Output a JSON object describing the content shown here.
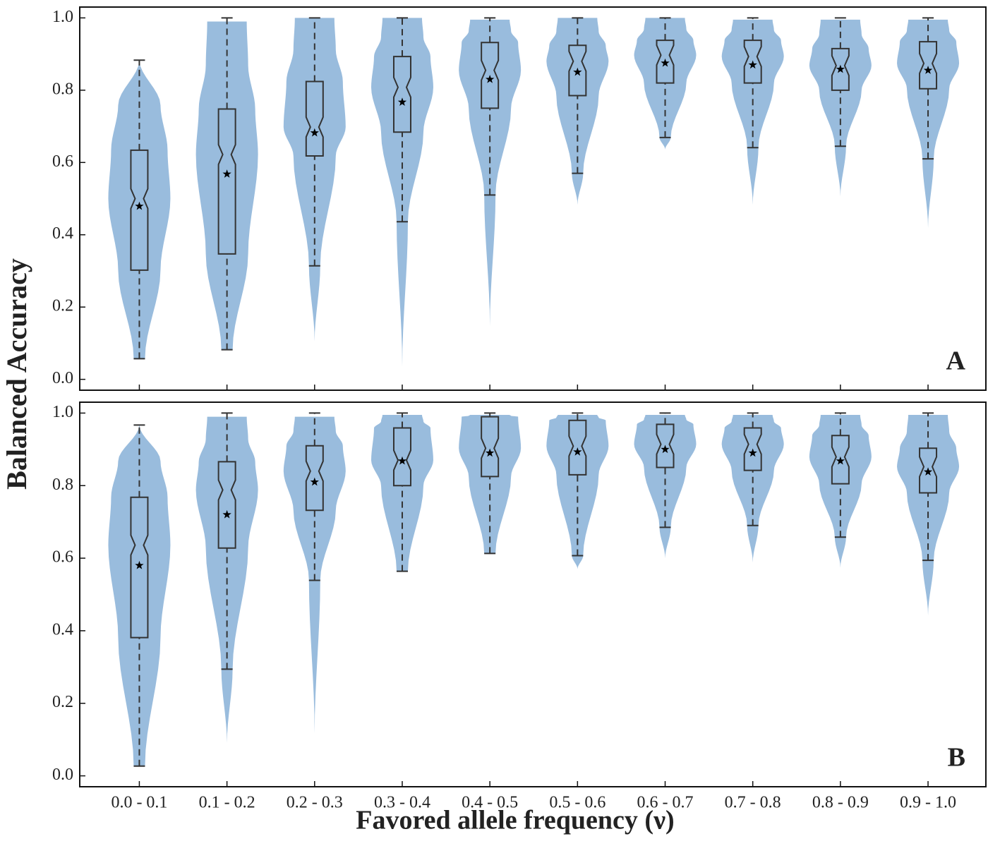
{
  "y_label": "Balanced Accuracy",
  "x_label": "Favored allele frequency (ν)",
  "chart_data": [
    {
      "type": "violin",
      "panel_label": "A",
      "color": "#99bcdd",
      "ylim": [
        -0.03,
        1.03
      ],
      "yticks": [
        {
          "value": 0,
          "label": "0.0"
        },
        {
          "value": 0.2,
          "label": "0.2"
        },
        {
          "value": 0.4,
          "label": "0.4"
        },
        {
          "value": 0.6,
          "label": "0.6"
        },
        {
          "value": 0.8,
          "label": "0.8"
        },
        {
          "value": 1,
          "label": "1.0"
        }
      ],
      "violin_min": [
        0.057,
        0.082,
        0.105,
        0.035,
        0.147,
        0.483,
        0.636,
        0.483,
        0.506,
        0.419
      ],
      "violin_max": [
        0.883,
        0.99,
        1.0,
        1.0,
        0.995,
        1.0,
        1.0,
        0.995,
        0.995,
        0.995
      ],
      "whisker_low": [
        0.057,
        0.082,
        0.314,
        0.436,
        0.51,
        0.57,
        0.669,
        0.641,
        0.645,
        0.61
      ],
      "q1": [
        0.302,
        0.347,
        0.618,
        0.684,
        0.75,
        0.785,
        0.82,
        0.82,
        0.8,
        0.804
      ],
      "median": [
        0.5,
        0.622,
        0.698,
        0.808,
        0.855,
        0.88,
        0.897,
        0.893,
        0.868,
        0.874
      ],
      "q3": [
        0.634,
        0.748,
        0.824,
        0.893,
        0.932,
        0.924,
        0.938,
        0.938,
        0.915,
        0.934
      ],
      "whisker_high": [
        0.883,
        1.0,
        1.0,
        1.0,
        1.0,
        1.0,
        1.0,
        1.0,
        1.0,
        1.0
      ],
      "mean": [
        0.479,
        0.568,
        0.682,
        0.767,
        0.83,
        0.85,
        0.875,
        0.87,
        0.858,
        0.855
      ]
    },
    {
      "type": "violin",
      "panel_label": "B",
      "color": "#99bcdd",
      "ylim": [
        -0.03,
        1.03
      ],
      "yticks": [
        {
          "value": 0,
          "label": "0.0"
        },
        {
          "value": 0.2,
          "label": "0.2"
        },
        {
          "value": 0.4,
          "label": "0.4"
        },
        {
          "value": 0.6,
          "label": "0.6"
        },
        {
          "value": 0.8,
          "label": "0.8"
        },
        {
          "value": 1,
          "label": "1.0"
        }
      ],
      "categories": [
        "0.0 - 0.1",
        "0.1 - 0.2",
        "0.2 - 0.3",
        "0.3 - 0.4",
        "0.4 - 0.5",
        "0.5 - 0.6",
        "0.6 - 0.7",
        "0.7 - 0.8",
        "0.8 - 0.9",
        "0.9 - 1.0"
      ],
      "violin_min": [
        0.027,
        0.091,
        0.117,
        0.564,
        0.613,
        0.57,
        0.6,
        0.588,
        0.574,
        0.442
      ],
      "violin_max": [
        0.967,
        0.99,
        0.99,
        0.995,
        0.995,
        0.995,
        0.995,
        0.995,
        0.995,
        0.995
      ],
      "whisker_low": [
        0.027,
        0.294,
        0.539,
        0.564,
        0.613,
        0.607,
        0.685,
        0.69,
        0.658,
        0.594
      ],
      "q1": [
        0.381,
        0.628,
        0.732,
        0.8,
        0.825,
        0.83,
        0.85,
        0.842,
        0.805,
        0.78
      ],
      "median": [
        0.636,
        0.788,
        0.84,
        0.87,
        0.903,
        0.909,
        0.914,
        0.914,
        0.879,
        0.852
      ],
      "q3": [
        0.768,
        0.866,
        0.91,
        0.959,
        0.99,
        0.98,
        0.969,
        0.959,
        0.938,
        0.903
      ],
      "whisker_high": [
        0.967,
        1.0,
        1.0,
        1.0,
        1.0,
        1.0,
        1.0,
        1.0,
        1.0,
        1.0
      ],
      "mean": [
        0.58,
        0.72,
        0.81,
        0.868,
        0.89,
        0.893,
        0.9,
        0.89,
        0.868,
        0.838
      ]
    }
  ]
}
